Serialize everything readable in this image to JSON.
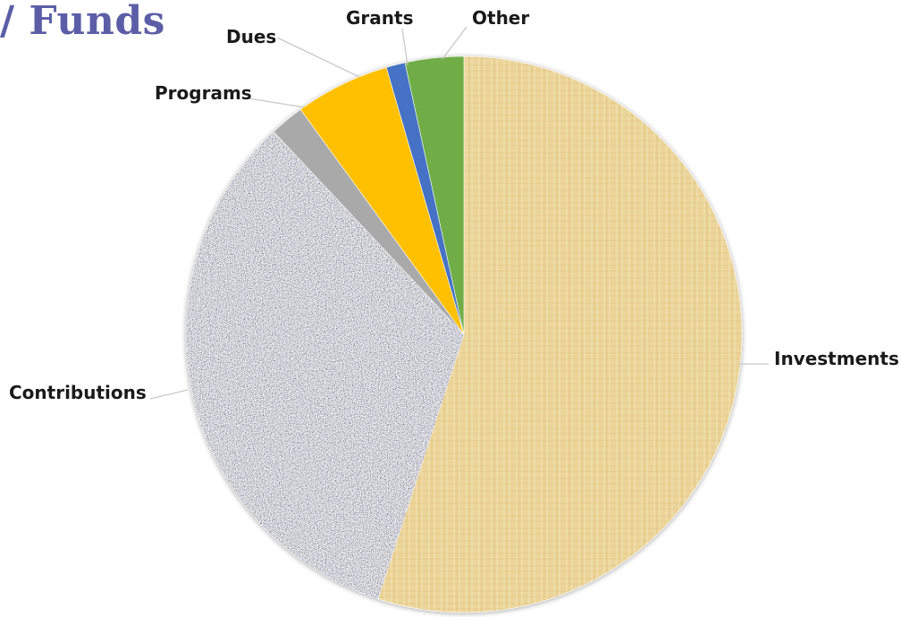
{
  "page": {
    "title_fragment": "/ Funds"
  },
  "chart_data": {
    "type": "pie",
    "title": "",
    "start_angle_deg": 0,
    "direction": "clockwise",
    "slices": [
      {
        "label": "Investments",
        "value": 55.0,
        "color": "#ecd59a",
        "pattern": "linen"
      },
      {
        "label": "Contributions",
        "value": 33.0,
        "color": "#9a9ea3",
        "pattern": "granite"
      },
      {
        "label": "Programs",
        "value": 2.0,
        "color": "#a9a9a9",
        "pattern": "solid"
      },
      {
        "label": "Dues",
        "value": 5.5,
        "color": "#ffc000",
        "pattern": "solid"
      },
      {
        "label": "Grants",
        "value": 1.1,
        "color": "#4472c4",
        "pattern": "solid"
      },
      {
        "label": "Other",
        "value": 3.4,
        "color": "#70ad47",
        "pattern": "solid"
      }
    ]
  }
}
